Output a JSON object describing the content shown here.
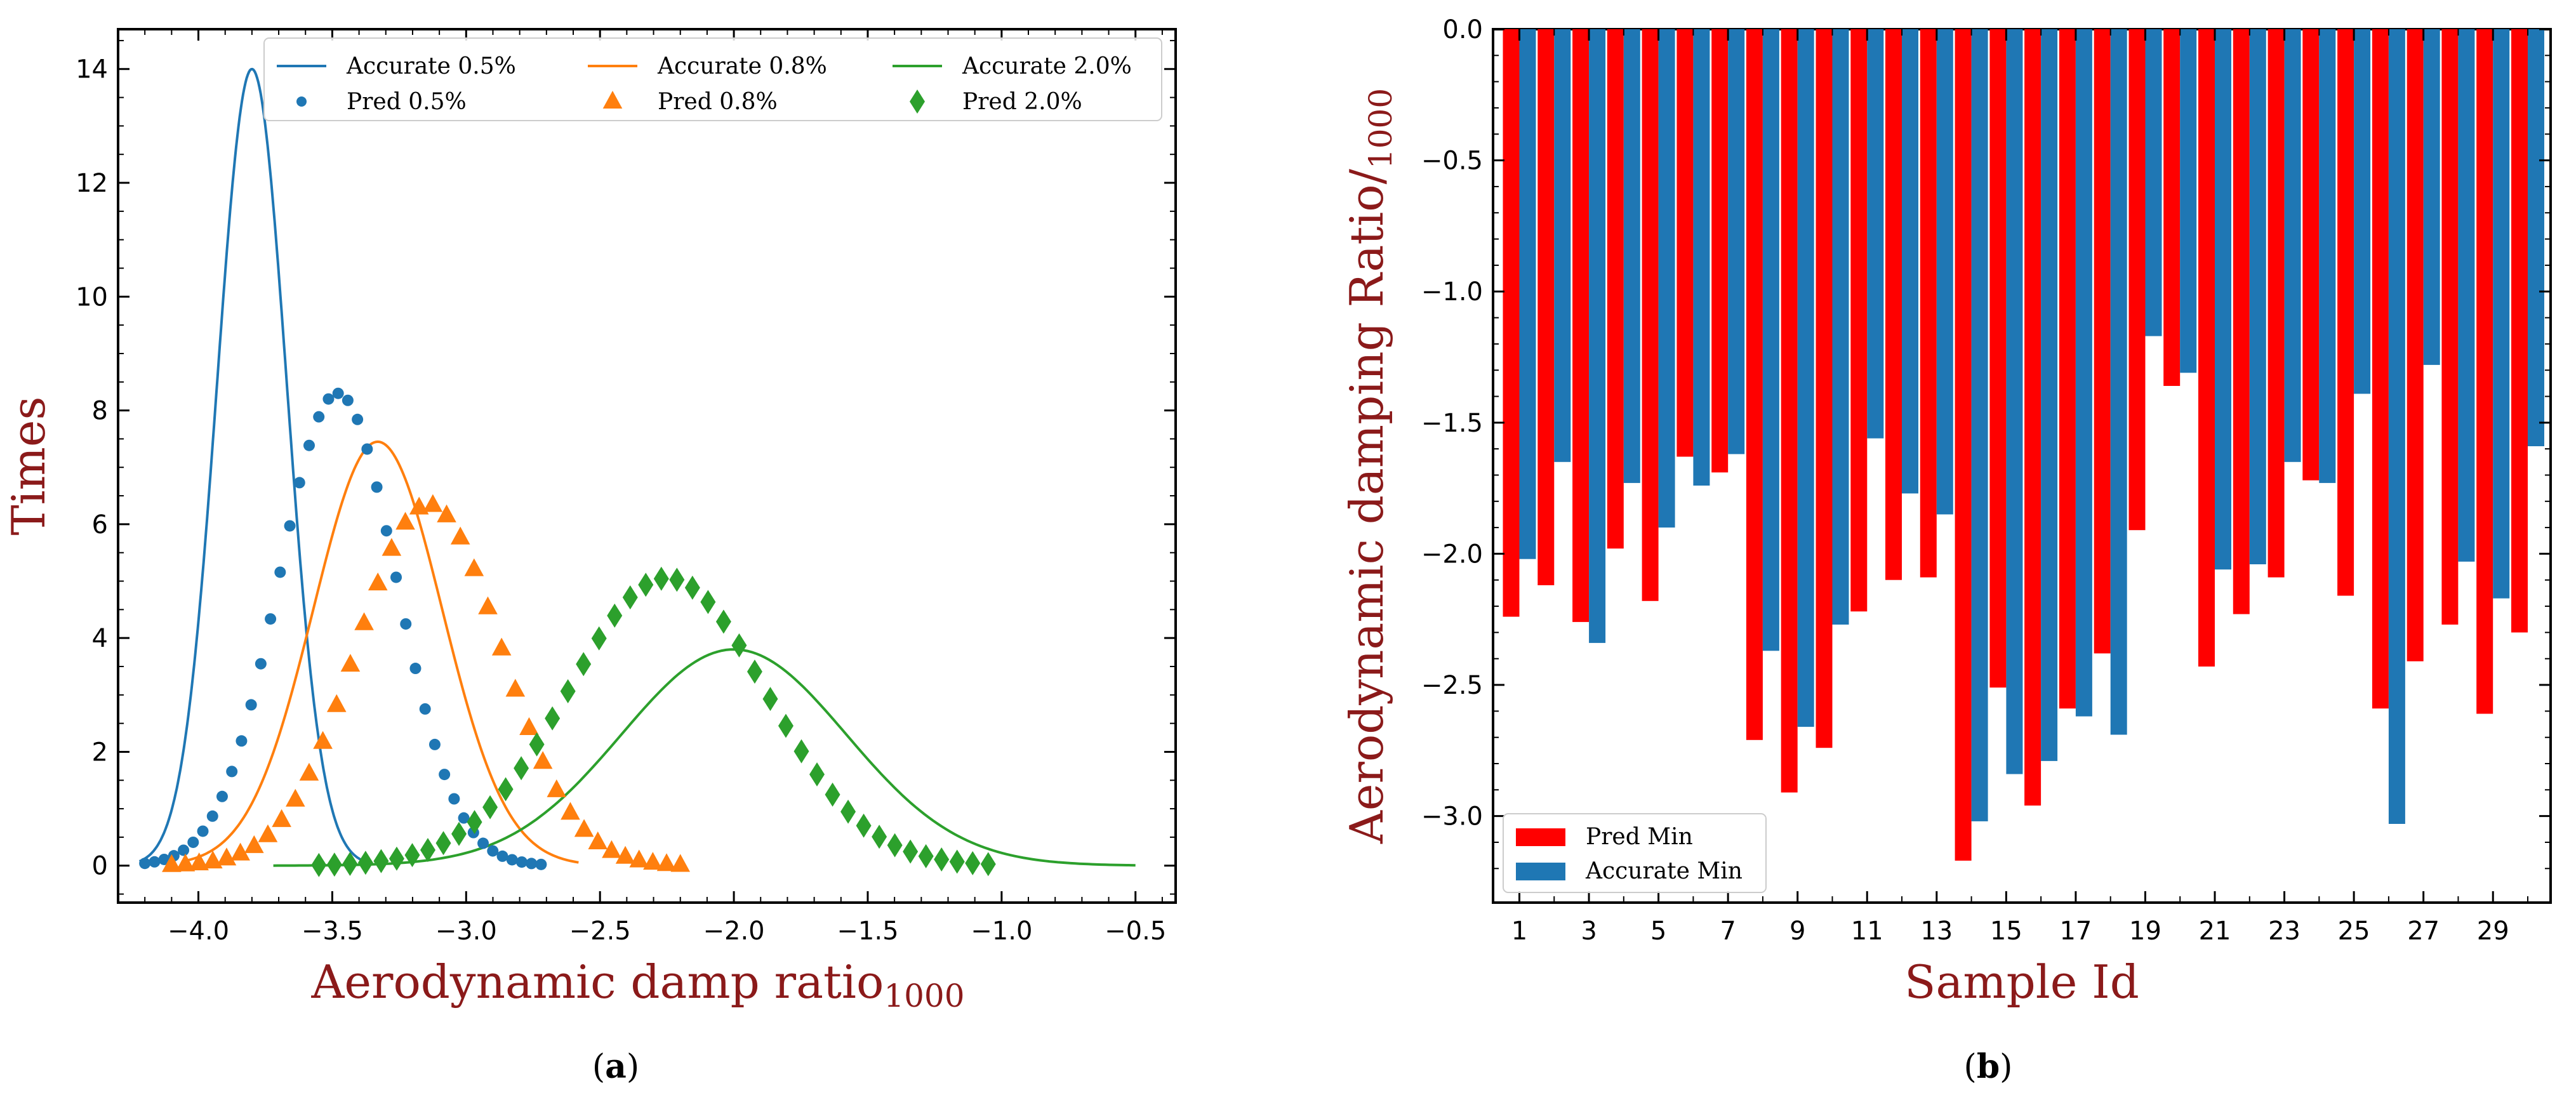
{
  "chart_data": [
    {
      "type": "line",
      "panel": "(a)",
      "panel_letter": "a",
      "title": "",
      "xlabel": "Aerodynamic damp ratio",
      "xlabel_sub": "1000",
      "ylabel": "Times",
      "xlim": [
        -4.3,
        -0.35
      ],
      "ylim": [
        -0.65,
        14.7
      ],
      "xticks": [
        -4.0,
        -3.5,
        -3.0,
        -2.5,
        -2.0,
        -1.5,
        -1.0,
        -0.5
      ],
      "xtick_labels": [
        "−4.0",
        "−3.5",
        "−3.0",
        "−2.5",
        "−2.0",
        "−1.5",
        "−1.0",
        "−0.5"
      ],
      "yticks": [
        0,
        2,
        4,
        6,
        8,
        10,
        12,
        14
      ],
      "ytick_labels": [
        "0",
        "2",
        "4",
        "6",
        "8",
        "10",
        "12",
        "14"
      ],
      "legend": {
        "position": "top",
        "entries": [
          "Accurate 0.5%",
          "Accurate 0.8%",
          "Accurate 2.0%",
          "Pred 0.5%",
          "Pred 0.8%",
          "Pred 2.0%"
        ]
      },
      "series": [
        {
          "name": "Accurate 0.5%",
          "kind": "line",
          "color": "#1f77b4",
          "mu": -3.8,
          "sigma": 0.13,
          "peak": 14.0,
          "x_range": [
            -4.22,
            -3.35
          ]
        },
        {
          "name": "Accurate 0.8%",
          "kind": "line",
          "color": "#ff7f0e",
          "mu": -3.33,
          "sigma": 0.24,
          "peak": 7.45,
          "x_range": [
            -4.05,
            -2.58
          ]
        },
        {
          "name": "Accurate 2.0%",
          "kind": "line",
          "color": "#2ca02c",
          "mu": -2.0,
          "sigma": 0.42,
          "peak": 3.8,
          "x_range": [
            -3.72,
            -0.5
          ]
        },
        {
          "name": "Pred 0.5%",
          "kind": "scatter",
          "marker": "circle",
          "color": "#1f77b4",
          "mu": -3.48,
          "sigma": 0.22,
          "peak": 8.3,
          "x_range": [
            -4.2,
            -2.72
          ],
          "n_points": 42
        },
        {
          "name": "Pred 0.8%",
          "kind": "scatter",
          "marker": "triangle",
          "color": "#ff7f0e",
          "mu": -3.14,
          "sigma": 0.27,
          "peak": 6.35,
          "x_range": [
            -4.1,
            -2.2
          ],
          "n_points": 38
        },
        {
          "name": "Pred 2.0%",
          "kind": "scatter",
          "marker": "diamond",
          "color": "#2ca02c",
          "mu": -2.25,
          "sigma": 0.37,
          "peak": 5.05,
          "x_range": [
            -3.55,
            -1.05
          ],
          "n_points": 44
        }
      ]
    },
    {
      "type": "bar",
      "panel": "(b)",
      "panel_letter": "b",
      "title": "",
      "xlabel": "Sample Id",
      "ylabel": "Aerodynamic damping Ratio/",
      "ylabel_sub": "1000",
      "ylim": [
        -3.33,
        0.0
      ],
      "yticks": [
        0.0,
        -0.5,
        -1.0,
        -1.5,
        -2.0,
        -2.5,
        -3.0
      ],
      "ytick_labels": [
        "0.0",
        "−0.5",
        "−1.0",
        "−1.5",
        "−2.0",
        "−2.5",
        "−3.0"
      ],
      "xtick_labels": [
        "1",
        "3",
        "5",
        "7",
        "9",
        "11",
        "13",
        "15",
        "17",
        "19",
        "21",
        "23",
        "25",
        "27",
        "29"
      ],
      "categories": [
        1,
        2,
        3,
        4,
        5,
        6,
        7,
        8,
        9,
        10,
        11,
        12,
        13,
        14,
        15,
        16,
        17,
        18,
        19,
        20,
        21,
        22,
        23,
        24,
        25,
        26,
        27,
        28,
        29,
        30
      ],
      "legend": {
        "position": "lower-left",
        "entries": [
          "Pred Min",
          "Accurate Min"
        ]
      },
      "series": [
        {
          "name": "Pred Min",
          "color": "#ff0000",
          "values": [
            -2.24,
            -2.12,
            -2.26,
            -1.98,
            -2.18,
            -1.63,
            -1.69,
            -2.71,
            -2.91,
            -2.74,
            -2.22,
            -2.1,
            -2.09,
            -3.17,
            -2.51,
            -2.96,
            -2.59,
            -2.38,
            -1.91,
            -1.36,
            -2.43,
            -2.23,
            -2.09,
            -1.72,
            -2.16,
            -2.59,
            -2.41,
            -2.27,
            -2.61,
            -2.3
          ]
        },
        {
          "name": "Accurate Min",
          "color": "#1f77b4",
          "values": [
            -2.02,
            -1.65,
            -2.34,
            -1.73,
            -1.9,
            -1.74,
            -1.62,
            -2.37,
            -2.66,
            -2.27,
            -1.56,
            -1.77,
            -1.85,
            -3.02,
            -2.84,
            -2.79,
            -2.62,
            -2.69,
            -1.17,
            -1.31,
            -2.06,
            -2.04,
            -1.65,
            -1.73,
            -1.39,
            -3.03,
            -1.28,
            -2.03,
            -2.17,
            -1.59
          ]
        }
      ]
    }
  ]
}
